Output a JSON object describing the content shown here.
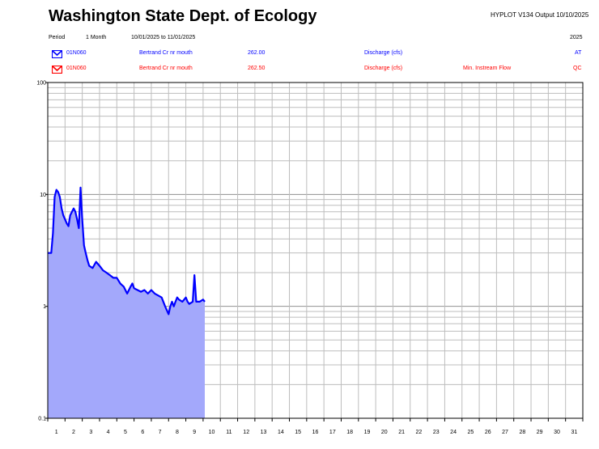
{
  "header": {
    "title": "Washington State Dept. of Ecology",
    "version": "HYPLOT V134  Output 10/10/2025",
    "period_label": "Period",
    "period_length": "1 Month",
    "period_range": "10/01/2025  to  11/01/2025",
    "year": "2025"
  },
  "series_rows": [
    {
      "code": "01N060",
      "station": "Bertrand Cr nr mouth",
      "number": "262.00",
      "parameter": "Discharge (cfs)",
      "note": "",
      "flag": "AT",
      "color": "#0000ff"
    },
    {
      "code": "01N060",
      "station": "Bertrand Cr nr mouth",
      "number": "262.50",
      "parameter": "Discharge (cfs)",
      "note": "Min. Instream Flow",
      "flag": "QC",
      "color": "#ff0000"
    }
  ],
  "chart_data": {
    "type": "area",
    "y_scale": "log",
    "ylim": [
      0.1,
      100
    ],
    "xlim": [
      1,
      32
    ],
    "y_tick_labels": [
      "100",
      "10",
      "1",
      "0.1"
    ],
    "x_tick_labels": [
      "1",
      "2",
      "3",
      "4",
      "5",
      "6",
      "7",
      "8",
      "9",
      "10",
      "11",
      "12",
      "13",
      "14",
      "15",
      "16",
      "17",
      "18",
      "19",
      "20",
      "21",
      "22",
      "23",
      "24",
      "25",
      "26",
      "27",
      "28",
      "29",
      "30",
      "31"
    ],
    "grid": true,
    "fill_color": "#a3a8fb",
    "line_color": "#0000ff",
    "series": [
      {
        "x": [
          1.0,
          1.2,
          1.3,
          1.4,
          1.5,
          1.6,
          1.7,
          1.8,
          1.9,
          2.0,
          2.1,
          2.2,
          2.3,
          2.4,
          2.5,
          2.6,
          2.7,
          2.8,
          2.9,
          3.0,
          3.1,
          3.2,
          3.3,
          3.4,
          3.6,
          3.8,
          4.0,
          4.2,
          4.4,
          4.6,
          4.8,
          5.0,
          5.2,
          5.4,
          5.6,
          5.8,
          5.9,
          6.0,
          6.2,
          6.4,
          6.6,
          6.8,
          7.0,
          7.2,
          7.4,
          7.6,
          7.8,
          8.0,
          8.1,
          8.2,
          8.3,
          8.4,
          8.5,
          8.6,
          8.8,
          9.0,
          9.1,
          9.2,
          9.4,
          9.5,
          9.6,
          9.8,
          10.0,
          10.1
        ],
        "y": [
          3.0,
          3.0,
          4.5,
          9.5,
          11.0,
          10.5,
          9.5,
          7.5,
          6.5,
          6.0,
          5.5,
          5.2,
          6.5,
          7.0,
          7.5,
          7.0,
          6.0,
          5.0,
          11.5,
          6.0,
          3.5,
          3.0,
          2.6,
          2.3,
          2.2,
          2.5,
          2.3,
          2.1,
          2.0,
          1.9,
          1.8,
          1.8,
          1.6,
          1.5,
          1.3,
          1.5,
          1.6,
          1.45,
          1.4,
          1.35,
          1.4,
          1.3,
          1.4,
          1.3,
          1.25,
          1.2,
          1.0,
          0.85,
          1.0,
          1.1,
          1.0,
          1.1,
          1.2,
          1.15,
          1.1,
          1.2,
          1.1,
          1.05,
          1.1,
          1.9,
          1.1,
          1.1,
          1.15,
          1.1
        ]
      }
    ]
  }
}
